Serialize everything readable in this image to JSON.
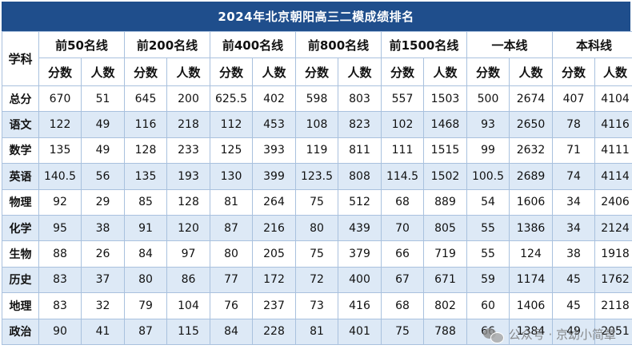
{
  "title": "2024年北京朝阳高三二模成绩排名",
  "subject_header": "学科",
  "groups": [
    "前50名线",
    "前200名线",
    "前400名线",
    "前800名线",
    "前1500名线",
    "一本线",
    "本科线"
  ],
  "sub_headers": [
    "分数",
    "人数"
  ],
  "rows": [
    {
      "subject": "总分",
      "values": [
        "670",
        "51",
        "645",
        "200",
        "625.5",
        "402",
        "598",
        "803",
        "557",
        "1503",
        "500",
        "2674",
        "407",
        "4104"
      ]
    },
    {
      "subject": "语文",
      "values": [
        "122",
        "49",
        "116",
        "218",
        "112",
        "453",
        "108",
        "823",
        "102",
        "1468",
        "93",
        "2650",
        "78",
        "4116"
      ]
    },
    {
      "subject": "数学",
      "values": [
        "135",
        "49",
        "128",
        "233",
        "125",
        "393",
        "119",
        "811",
        "111",
        "1515",
        "99",
        "2632",
        "71",
        "4111"
      ]
    },
    {
      "subject": "英语",
      "values": [
        "140.5",
        "56",
        "135",
        "193",
        "130",
        "399",
        "123.5",
        "808",
        "114.5",
        "1502",
        "100.5",
        "2689",
        "74",
        "4114"
      ]
    },
    {
      "subject": "物理",
      "values": [
        "92",
        "29",
        "85",
        "128",
        "81",
        "264",
        "75",
        "512",
        "68",
        "889",
        "54",
        "1606",
        "34",
        "2406"
      ]
    },
    {
      "subject": "化学",
      "values": [
        "95",
        "38",
        "91",
        "120",
        "87",
        "216",
        "80",
        "439",
        "70",
        "805",
        "55",
        "1386",
        "34",
        "2124"
      ]
    },
    {
      "subject": "生物",
      "values": [
        "88",
        "26",
        "84",
        "97",
        "80",
        "205",
        "75",
        "379",
        "66",
        "719",
        "55",
        "124",
        "38",
        "1918"
      ]
    },
    {
      "subject": "历史",
      "values": [
        "83",
        "37",
        "80",
        "86",
        "77",
        "172",
        "72",
        "400",
        "67",
        "671",
        "59",
        "1174",
        "45",
        "1762"
      ]
    },
    {
      "subject": "地理",
      "values": [
        "83",
        "32",
        "79",
        "104",
        "76",
        "237",
        "73",
        "416",
        "68",
        "802",
        "60",
        "1406",
        "45",
        "2118"
      ]
    },
    {
      "subject": "政治",
      "values": [
        "90",
        "41",
        "87",
        "115",
        "84",
        "228",
        "81",
        "401",
        "75",
        "788",
        "66",
        "1384",
        "49",
        "2051"
      ]
    }
  ],
  "watermark": "公众号 · 京幼小简章",
  "colors": {
    "title_bg": "#1f4e8c",
    "alt_row": "#dde9f6",
    "border": "#a9c1de"
  }
}
